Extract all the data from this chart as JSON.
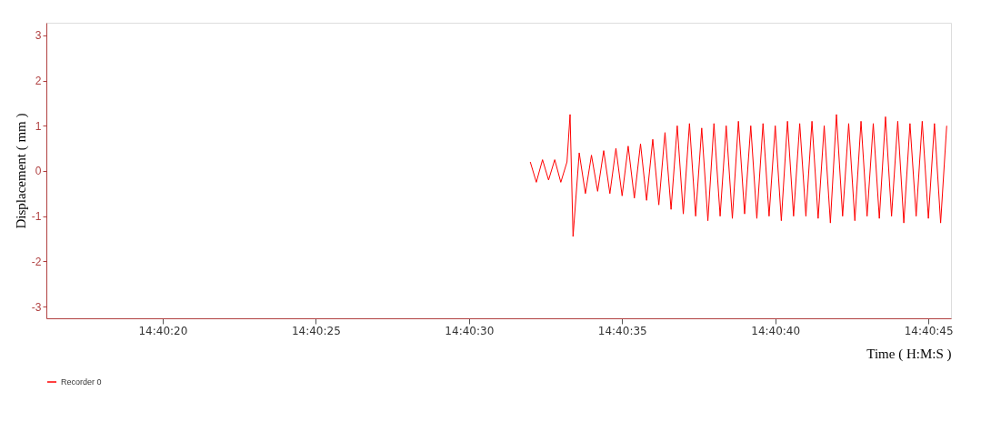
{
  "chart_data": {
    "type": "line",
    "xlabel": "Time ( H:M:S )",
    "ylabel": "Displacement ( mm )",
    "x": [
      14.675556,
      14.675611,
      14.675667,
      14.675722,
      14.675778,
      14.675833,
      14.675889,
      14.675917,
      14.675944,
      14.676,
      14.676056,
      14.676111,
      14.676167,
      14.676222,
      14.676278,
      14.676333,
      14.676389,
      14.676444,
      14.6765,
      14.676556,
      14.676611,
      14.676667,
      14.676722,
      14.676778,
      14.676833,
      14.676889,
      14.676944,
      14.677,
      14.677056,
      14.677111,
      14.677167,
      14.677222,
      14.677278,
      14.677333,
      14.677389,
      14.677444,
      14.6775,
      14.677556,
      14.677611,
      14.677667,
      14.677722,
      14.677778,
      14.677833,
      14.677889,
      14.677944,
      14.678,
      14.678056,
      14.678111,
      14.678167,
      14.678222,
      14.678278,
      14.678333,
      14.678389,
      14.678444,
      14.6785,
      14.678556,
      14.678611,
      14.678667,
      14.678722,
      14.678778,
      14.678833,
      14.678889,
      14.678944,
      14.679,
      14.679056,
      14.679111,
      14.679167,
      14.679222,
      14.679278,
      14.679333
    ],
    "series": [
      {
        "name": "Recorder 0",
        "color": "#ff0000",
        "values": [
          0.2,
          -0.25,
          0.25,
          -0.2,
          0.25,
          -0.25,
          0.2,
          1.25,
          -1.45,
          0.4,
          -0.5,
          0.35,
          -0.45,
          0.45,
          -0.5,
          0.5,
          -0.55,
          0.55,
          -0.6,
          0.6,
          -0.65,
          0.7,
          -0.75,
          0.85,
          -0.85,
          1.0,
          -0.95,
          1.05,
          -1.0,
          0.95,
          -1.1,
          1.05,
          -1.0,
          1.0,
          -1.05,
          1.1,
          -0.95,
          1.0,
          -1.05,
          1.05,
          -1.0,
          1.0,
          -1.1,
          1.1,
          -1.0,
          1.05,
          -1.0,
          1.1,
          -1.05,
          1.0,
          -1.15,
          1.25,
          -1.0,
          1.05,
          -1.1,
          1.1,
          -1.0,
          1.05,
          -1.05,
          1.2,
          -1.0,
          1.1,
          -1.15,
          1.05,
          -1.0,
          1.1,
          -1.05,
          1.05,
          -1.15,
          1.0
        ]
      }
    ],
    "xlim": [
      14.671167,
      14.679372
    ],
    "xticks": [
      {
        "value": 14.672222,
        "label": "14:40:20"
      },
      {
        "value": 14.673611,
        "label": "14:40:25"
      },
      {
        "value": 14.675,
        "label": "14:40:30"
      },
      {
        "value": 14.676389,
        "label": "14:40:35"
      },
      {
        "value": 14.677778,
        "label": "14:40:40"
      },
      {
        "value": 14.679167,
        "label": "14:40:45"
      }
    ],
    "ylim": [
      -3.26,
      3.28
    ],
    "yticks": [
      -3,
      -2,
      -1,
      0,
      1,
      2,
      3
    ],
    "grid": false,
    "legend": "bottom left"
  }
}
